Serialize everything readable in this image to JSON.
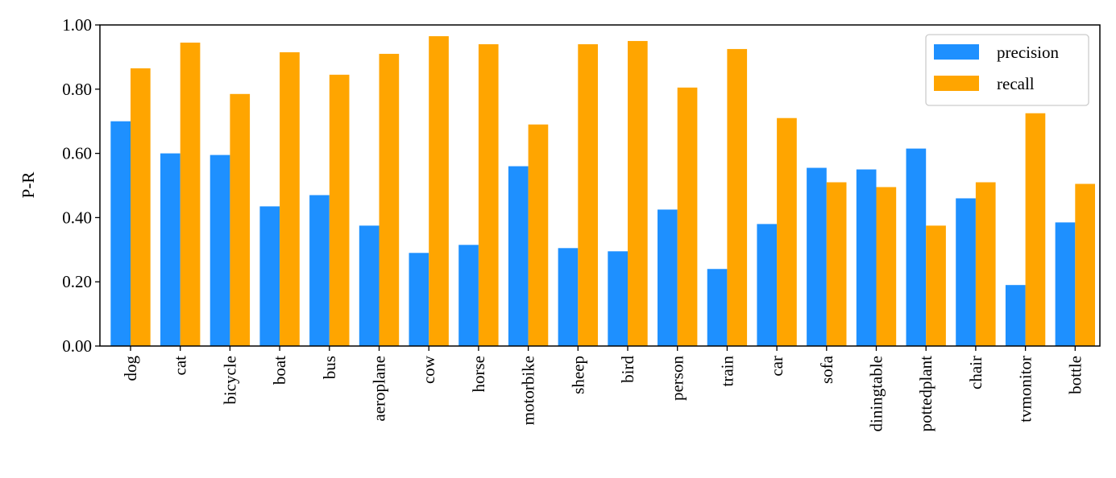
{
  "chart_data": {
    "type": "bar",
    "ylabel": "P-R",
    "categories": [
      "dog",
      "cat",
      "bicycle",
      "boat",
      "bus",
      "aeroplane",
      "cow",
      "horse",
      "motorbike",
      "sheep",
      "bird",
      "person",
      "train",
      "car",
      "sofa",
      "diningtable",
      "pottedplant",
      "chair",
      "tvmonitor",
      "bottle"
    ],
    "series": [
      {
        "name": "precision",
        "color": "#1e90ff",
        "values": [
          0.7,
          0.6,
          0.595,
          0.435,
          0.47,
          0.375,
          0.29,
          0.315,
          0.56,
          0.305,
          0.295,
          0.425,
          0.24,
          0.38,
          0.555,
          0.55,
          0.615,
          0.46,
          0.19,
          0.385
        ]
      },
      {
        "name": "recall",
        "color": "#ffa500",
        "values": [
          0.865,
          0.945,
          0.785,
          0.915,
          0.845,
          0.91,
          0.965,
          0.94,
          0.69,
          0.94,
          0.95,
          0.805,
          0.925,
          0.71,
          0.51,
          0.495,
          0.375,
          0.51,
          0.725,
          0.505
        ]
      }
    ],
    "ylim": [
      0,
      1
    ],
    "yticks": [
      {
        "value": 0,
        "label": "0.00"
      },
      {
        "value": 0.2,
        "label": "0.20"
      },
      {
        "value": 0.4,
        "label": "0.40"
      },
      {
        "value": 0.6,
        "label": "0.60"
      },
      {
        "value": 0.8,
        "label": "0.80"
      },
      {
        "value": 1,
        "label": "1.00"
      }
    ],
    "legend": "upper right"
  }
}
